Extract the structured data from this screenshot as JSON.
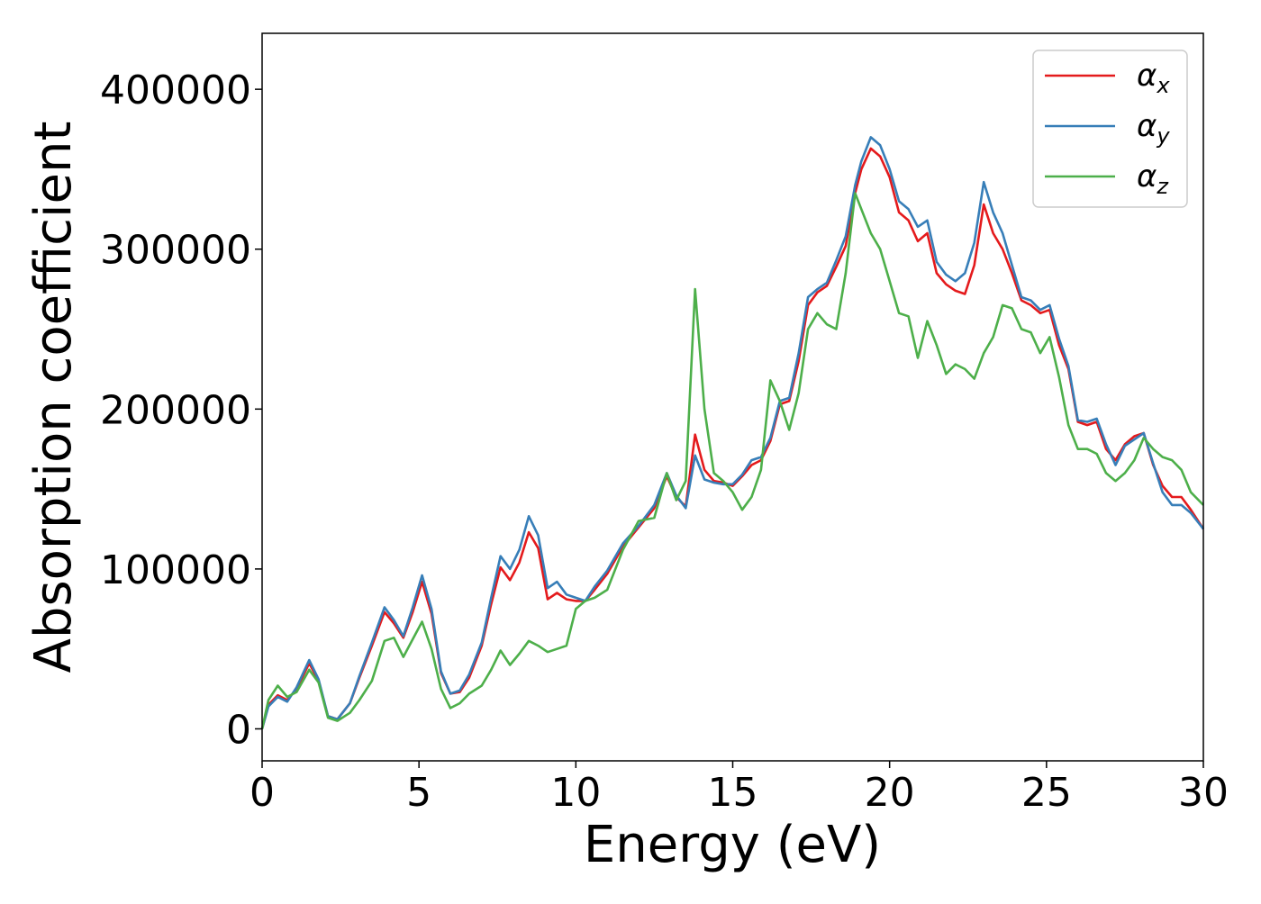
{
  "chart_data": {
    "type": "line",
    "xlabel": "Energy (eV)",
    "ylabel": "Absorption coefficient",
    "xlim": [
      0,
      30
    ],
    "ylim": [
      -20000,
      435000
    ],
    "xticks": [
      0,
      5,
      10,
      15,
      20,
      25,
      30
    ],
    "xtick_labels": [
      "0",
      "5",
      "10",
      "15",
      "20",
      "25",
      "30"
    ],
    "yticks": [
      0,
      100000,
      200000,
      300000,
      400000
    ],
    "ytick_labels": [
      "0",
      "100000",
      "200000",
      "300000",
      "400000"
    ],
    "grid": false,
    "legend_position": "top-right",
    "series": [
      {
        "name": "α_x",
        "color": "#e41a1c",
        "x": [
          0,
          0.2,
          0.5,
          0.8,
          1.1,
          1.5,
          1.8,
          2.1,
          2.4,
          2.8,
          3.1,
          3.5,
          3.9,
          4.2,
          4.5,
          4.8,
          5.1,
          5.4,
          5.7,
          6.0,
          6.3,
          6.6,
          7.0,
          7.3,
          7.6,
          7.9,
          8.2,
          8.5,
          8.8,
          9.1,
          9.4,
          9.7,
          10.0,
          10.3,
          10.6,
          11.0,
          11.5,
          12.0,
          12.5,
          12.9,
          13.2,
          13.5,
          13.8,
          14.1,
          14.4,
          14.7,
          15.0,
          15.3,
          15.6,
          15.9,
          16.2,
          16.5,
          16.8,
          17.1,
          17.4,
          17.7,
          18.0,
          18.3,
          18.6,
          18.9,
          19.1,
          19.4,
          19.7,
          20.0,
          20.3,
          20.6,
          20.9,
          21.2,
          21.5,
          21.8,
          22.1,
          22.4,
          22.7,
          23.0,
          23.3,
          23.6,
          23.9,
          24.2,
          24.5,
          24.8,
          25.1,
          25.4,
          25.7,
          26.0,
          26.3,
          26.6,
          26.9,
          27.2,
          27.5,
          27.8,
          28.1,
          28.4,
          28.7,
          29.0,
          29.3,
          29.6,
          30.0
        ],
        "values": [
          0,
          15000,
          21000,
          18000,
          25000,
          41000,
          30000,
          8000,
          6000,
          16000,
          32000,
          52000,
          73000,
          66000,
          57000,
          73000,
          92000,
          72000,
          35000,
          22000,
          23000,
          32000,
          52000,
          78000,
          101000,
          93000,
          104000,
          123000,
          113000,
          81000,
          85000,
          81000,
          80000,
          80000,
          87000,
          97000,
          114000,
          126000,
          138000,
          158000,
          145000,
          139000,
          184000,
          162000,
          155000,
          154000,
          152000,
          158000,
          165000,
          168000,
          180000,
          203000,
          205000,
          230000,
          265000,
          273000,
          277000,
          289000,
          302000,
          335000,
          350000,
          363000,
          358000,
          345000,
          323000,
          318000,
          305000,
          310000,
          285000,
          278000,
          274000,
          272000,
          290000,
          328000,
          310000,
          300000,
          285000,
          268000,
          265000,
          260000,
          262000,
          240000,
          225000,
          192000,
          190000,
          192000,
          175000,
          168000,
          178000,
          183000,
          185000,
          165000,
          152000,
          145000,
          145000,
          137000,
          125000
        ]
      },
      {
        "name": "α_y",
        "color": "#377eb8",
        "x": [
          0,
          0.2,
          0.5,
          0.8,
          1.1,
          1.5,
          1.8,
          2.1,
          2.4,
          2.8,
          3.1,
          3.5,
          3.9,
          4.2,
          4.5,
          4.8,
          5.1,
          5.4,
          5.7,
          6.0,
          6.3,
          6.6,
          7.0,
          7.3,
          7.6,
          7.9,
          8.2,
          8.5,
          8.8,
          9.1,
          9.4,
          9.7,
          10.0,
          10.3,
          10.6,
          11.0,
          11.5,
          12.0,
          12.5,
          12.9,
          13.2,
          13.5,
          13.8,
          14.1,
          14.4,
          14.7,
          15.0,
          15.3,
          15.6,
          15.9,
          16.2,
          16.5,
          16.8,
          17.1,
          17.4,
          17.7,
          18.0,
          18.3,
          18.6,
          18.9,
          19.1,
          19.4,
          19.7,
          20.0,
          20.3,
          20.6,
          20.9,
          21.2,
          21.5,
          21.8,
          22.1,
          22.4,
          22.7,
          23.0,
          23.3,
          23.6,
          23.9,
          24.2,
          24.5,
          24.8,
          25.1,
          25.4,
          25.7,
          26.0,
          26.3,
          26.6,
          26.9,
          27.2,
          27.5,
          27.8,
          28.1,
          28.4,
          28.7,
          29.0,
          29.3,
          29.6,
          30.0
        ],
        "values": [
          0,
          14000,
          20000,
          17000,
          26000,
          43000,
          31000,
          8000,
          6000,
          16000,
          33000,
          54000,
          76000,
          68000,
          58000,
          76000,
          96000,
          75000,
          36000,
          22000,
          24000,
          34000,
          54000,
          82000,
          108000,
          100000,
          112000,
          133000,
          121000,
          88000,
          92000,
          84000,
          82000,
          80000,
          89000,
          99000,
          116000,
          127000,
          140000,
          160000,
          146000,
          138000,
          171000,
          156000,
          154000,
          153000,
          153000,
          159000,
          168000,
          170000,
          182000,
          205000,
          207000,
          235000,
          270000,
          275000,
          279000,
          293000,
          308000,
          340000,
          355000,
          370000,
          365000,
          350000,
          330000,
          325000,
          314000,
          318000,
          292000,
          284000,
          280000,
          285000,
          304000,
          342000,
          323000,
          310000,
          290000,
          270000,
          268000,
          262000,
          265000,
          244000,
          227000,
          193000,
          192000,
          194000,
          178000,
          165000,
          177000,
          181000,
          185000,
          166000,
          148000,
          140000,
          140000,
          135000,
          125000
        ]
      },
      {
        "name": "α_z",
        "color": "#4daf4a",
        "x": [
          0,
          0.2,
          0.5,
          0.8,
          1.1,
          1.5,
          1.8,
          2.1,
          2.4,
          2.8,
          3.1,
          3.5,
          3.9,
          4.2,
          4.5,
          4.8,
          5.1,
          5.4,
          5.7,
          6.0,
          6.3,
          6.6,
          7.0,
          7.3,
          7.6,
          7.9,
          8.2,
          8.5,
          8.8,
          9.1,
          9.4,
          9.7,
          10.0,
          10.3,
          10.6,
          11.0,
          11.5,
          12.0,
          12.5,
          12.9,
          13.2,
          13.5,
          13.8,
          14.1,
          14.4,
          14.7,
          15.0,
          15.3,
          15.6,
          15.9,
          16.2,
          16.5,
          16.8,
          17.1,
          17.4,
          17.7,
          18.0,
          18.3,
          18.6,
          18.9,
          19.1,
          19.4,
          19.7,
          20.0,
          20.3,
          20.6,
          20.9,
          21.2,
          21.5,
          21.8,
          22.1,
          22.4,
          22.7,
          23.0,
          23.3,
          23.6,
          23.9,
          24.2,
          24.5,
          24.8,
          25.1,
          25.4,
          25.7,
          26.0,
          26.3,
          26.6,
          26.9,
          27.2,
          27.5,
          27.8,
          28.1,
          28.4,
          28.7,
          29.0,
          29.3,
          29.6,
          30.0
        ],
        "values": [
          0,
          18000,
          27000,
          20000,
          23000,
          37000,
          29000,
          7000,
          5000,
          10000,
          18000,
          30000,
          55000,
          57000,
          45000,
          56000,
          67000,
          50000,
          25000,
          13000,
          16000,
          22000,
          27000,
          37000,
          49000,
          40000,
          47000,
          55000,
          52000,
          48000,
          50000,
          52000,
          75000,
          80000,
          82000,
          87000,
          112000,
          130000,
          132000,
          160000,
          143000,
          155000,
          275000,
          200000,
          160000,
          155000,
          148000,
          137000,
          145000,
          162000,
          218000,
          205000,
          187000,
          210000,
          250000,
          260000,
          253000,
          250000,
          285000,
          335000,
          325000,
          310000,
          300000,
          280000,
          260000,
          258000,
          232000,
          255000,
          240000,
          222000,
          228000,
          225000,
          219000,
          235000,
          245000,
          265000,
          263000,
          250000,
          248000,
          235000,
          245000,
          220000,
          190000,
          175000,
          175000,
          172000,
          160000,
          155000,
          160000,
          168000,
          182000,
          175000,
          170000,
          168000,
          162000,
          148000,
          140000
        ]
      }
    ]
  }
}
